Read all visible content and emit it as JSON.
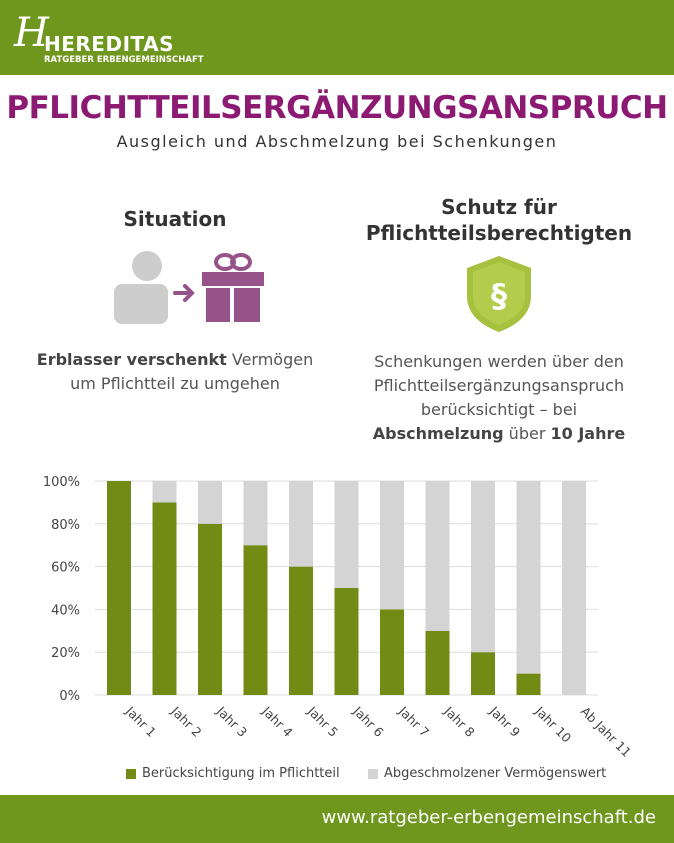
{
  "header": {
    "logo_letter": "H",
    "logo_name": "HEREDITAS",
    "logo_sub": "RATGEBER ERBENGEMEINSCHAFT"
  },
  "title": "PFLICHTTEILSERGÄNZUNGSANSPRUCH",
  "subtitle": "Ausgleich und Abschmelzung bei Schenkungen",
  "situation": {
    "heading": "Situation",
    "bold": "Erblasser verschenkt",
    "text1": " Vermögen",
    "text2": "um Pflichtteil zu umgehen"
  },
  "schutz": {
    "heading1": "Schutz für",
    "heading2": "Pflichtteilsberechtigten",
    "line1": "Schenkungen werden über den",
    "line2": "Pflichtteilsergänzungsanspruch",
    "line3": "berücksichtigt – bei",
    "bold1": "Abschmelzung",
    "mid": " über ",
    "bold2": "10 Jahre"
  },
  "colors": {
    "green": "#6f971d",
    "bar_green": "#718b14",
    "bar_gray": "#d4d4d4",
    "purple": "#8c1a73",
    "gift": "#965389",
    "shield": "#a6c13e"
  },
  "chart_data": {
    "type": "bar",
    "stacked": true,
    "categories": [
      "Jahr 1",
      "Jahr 2",
      "Jahr 3",
      "Jahr 4",
      "Jahr 5",
      "Jahr 6",
      "Jahr 7",
      "Jahr 8",
      "Jahr 9",
      "Jahr 10",
      "Ab Jahr 11"
    ],
    "series": [
      {
        "name": "Berücksichtigung im Pflichtteil",
        "values": [
          100,
          90,
          80,
          70,
          60,
          50,
          40,
          30,
          20,
          10,
          0
        ]
      },
      {
        "name": "Abgeschmolzener Vermögenswert",
        "values": [
          0,
          10,
          20,
          30,
          40,
          50,
          60,
          70,
          80,
          90,
          100
        ]
      }
    ],
    "yticks": [
      "0%",
      "20%",
      "40%",
      "60%",
      "80%",
      "100%"
    ],
    "ylim": [
      0,
      100
    ],
    "grid": true,
    "legend": "bottom"
  },
  "footer": {
    "url": "www.ratgeber-erbengemeinschaft.de"
  }
}
